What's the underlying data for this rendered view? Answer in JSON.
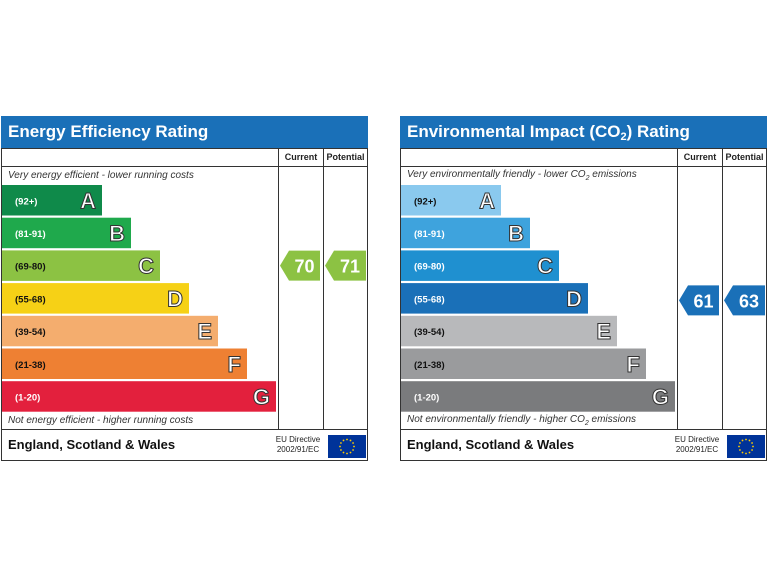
{
  "chart_data": [
    {
      "type": "bar",
      "title": "Energy Efficiency Rating",
      "columns": [
        "Current",
        "Potential"
      ],
      "top_note": "Very energy efficient - lower running costs",
      "bottom_note": "Not energy efficient - higher running costs",
      "footer": "England, Scotland & Wales",
      "directive_line1": "EU Directive",
      "directive_line2": "2002/91/EC",
      "bands": [
        {
          "range": "(92+)",
          "letter": "A",
          "color": "#0f8a4a"
        },
        {
          "range": "(81-91)",
          "letter": "B",
          "color": "#1fa94c"
        },
        {
          "range": "(69-80)",
          "letter": "C",
          "color": "#8cc243"
        },
        {
          "range": "(55-68)",
          "letter": "D",
          "color": "#f6d116"
        },
        {
          "range": "(39-54)",
          "letter": "E",
          "color": "#f4ad6e"
        },
        {
          "range": "(21-38)",
          "letter": "F",
          "color": "#ee8033"
        },
        {
          "range": "(1-20)",
          "letter": "G",
          "color": "#e3203d"
        }
      ],
      "current": {
        "value": 70,
        "band": "C",
        "color": "#8cc243"
      },
      "potential": {
        "value": 71,
        "band": "C",
        "color": "#8cc243"
      }
    },
    {
      "type": "bar",
      "title_main": "Environmental Impact (CO",
      "title_sub": "2",
      "title_end": ") Rating",
      "columns": [
        "Current",
        "Potential"
      ],
      "top_note_main": "Very environmentally friendly - lower CO",
      "top_note_sub": "2",
      "top_note_end": " emissions",
      "bottom_note_main": "Not environmentally friendly - higher CO",
      "bottom_note_sub": "2",
      "bottom_note_end": " emissions",
      "footer": "England, Scotland & Wales",
      "directive_line1": "EU Directive",
      "directive_line2": "2002/91/EC",
      "bands": [
        {
          "range": "(92+)",
          "letter": "A",
          "color": "#8ac9ee"
        },
        {
          "range": "(81-91)",
          "letter": "B",
          "color": "#3ea3dd"
        },
        {
          "range": "(69-80)",
          "letter": "C",
          "color": "#1f90d0"
        },
        {
          "range": "(55-68)",
          "letter": "D",
          "color": "#1a70b8"
        },
        {
          "range": "(39-54)",
          "letter": "E",
          "color": "#b8b9bb"
        },
        {
          "range": "(21-38)",
          "letter": "F",
          "color": "#9a9b9d"
        },
        {
          "range": "(1-20)",
          "letter": "G",
          "color": "#7a7b7d"
        }
      ],
      "current": {
        "value": 61,
        "band": "D",
        "color": "#1a70b8"
      },
      "potential": {
        "value": 63,
        "band": "D",
        "color": "#1a70b8"
      }
    }
  ]
}
